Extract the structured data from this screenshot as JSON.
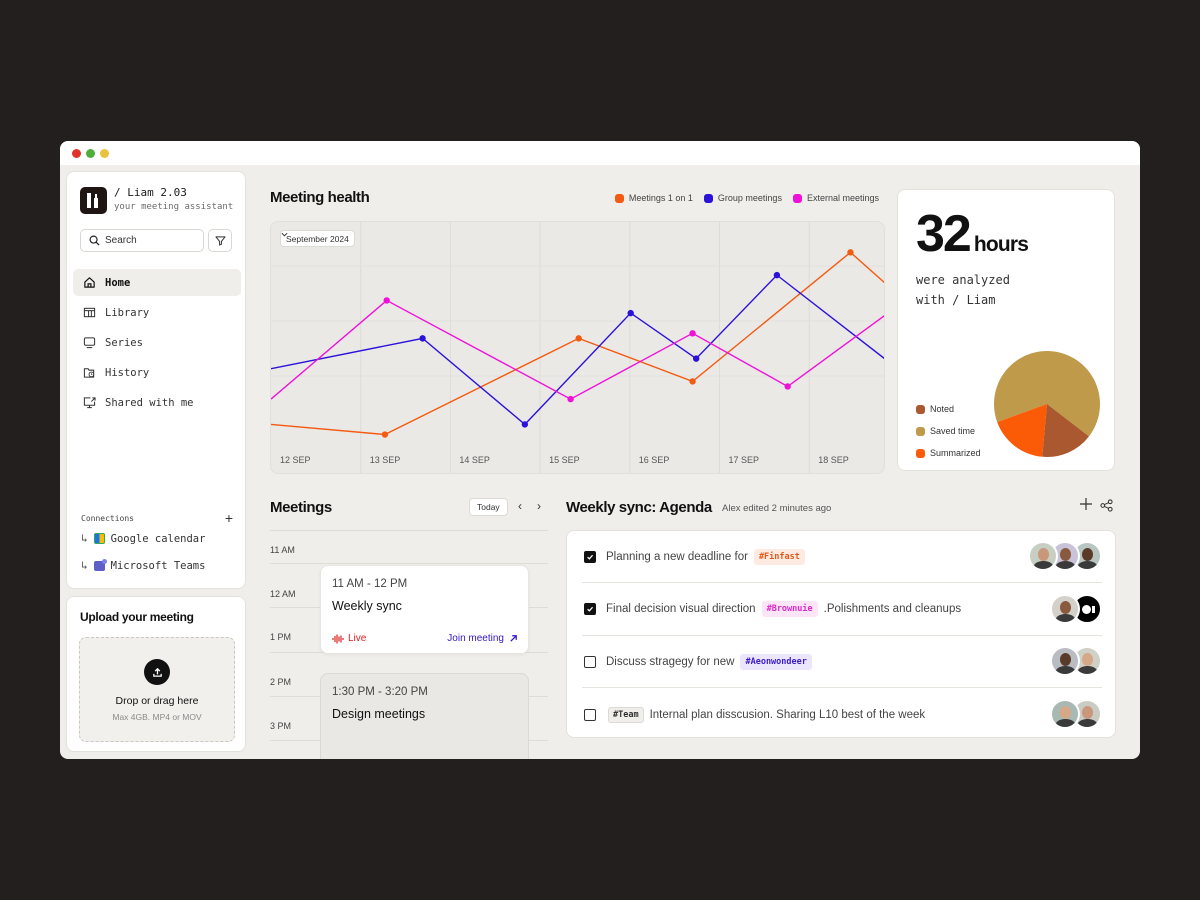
{
  "window": {
    "controls": [
      "#e0312b",
      "#4fae3a",
      "#e9c33d"
    ]
  },
  "sidebar": {
    "brand": {
      "title": "/ Liam 2.03",
      "subtitle": "your meeting assistant"
    },
    "search": {
      "placeholder": "Search"
    },
    "nav": [
      {
        "label": "Home",
        "icon": "home-icon",
        "active": true
      },
      {
        "label": "Library",
        "icon": "library-icon",
        "active": false
      },
      {
        "label": "Series",
        "icon": "monitor-icon",
        "active": false
      },
      {
        "label": "History",
        "icon": "history-folder-icon",
        "active": false
      },
      {
        "label": "Shared with me",
        "icon": "shared-screen-icon",
        "active": false
      }
    ],
    "connections": {
      "label": "Connections",
      "items": [
        {
          "label": "Google calendar",
          "icon": "google-calendar-icon"
        },
        {
          "label": "Microsoft Teams",
          "icon": "microsoft-teams-icon"
        }
      ]
    }
  },
  "upload": {
    "title": "Upload your meeting",
    "drop_title": "Drop or drag here",
    "drop_sub": "Max 4GB. MP4 or MOV"
  },
  "meeting_health": {
    "title": "Meeting health",
    "month": "September 2024"
  },
  "chart_data": {
    "type": "line",
    "title": "Meeting health",
    "x": [
      "12 SEP",
      "13 SEP",
      "14 SEP",
      "15 SEP",
      "16 SEP",
      "17 SEP",
      "18 SEP"
    ],
    "xlabel": "",
    "ylabel": "",
    "ylim": [
      0,
      100
    ],
    "grid": true,
    "legend_position": "top-right",
    "series": [
      {
        "name": "Meetings 1 on 1",
        "color": "#f35a12",
        "points": [
          [
            0.0,
            20
          ],
          [
            1.27,
            16
          ],
          [
            3.43,
            54
          ],
          [
            4.7,
            37
          ],
          [
            6.46,
            88
          ],
          [
            6.84,
            76
          ]
        ]
      },
      {
        "name": "Group meetings",
        "color": "#2a12d9",
        "points": [
          [
            0.0,
            42
          ],
          [
            1.69,
            54
          ],
          [
            2.83,
            20
          ],
          [
            4.01,
            64
          ],
          [
            4.74,
            46
          ],
          [
            5.64,
            79
          ],
          [
            6.84,
            46
          ]
        ]
      },
      {
        "name": "External meetings",
        "color": "#ee12d8",
        "points": [
          [
            0.0,
            30
          ],
          [
            1.29,
            69
          ],
          [
            3.34,
            30
          ],
          [
            4.7,
            56
          ],
          [
            5.76,
            35
          ],
          [
            6.84,
            63
          ]
        ]
      }
    ]
  },
  "hours": {
    "value": "32",
    "unit": "hours",
    "line1": "were analyzed",
    "line2": "with / Liam",
    "pie": [
      {
        "label": "Noted",
        "color": "#a9582f",
        "percent": 16
      },
      {
        "label": "Saved time",
        "color": "#bf9a4b",
        "percent": 66
      },
      {
        "label": "Summarized",
        "color": "#fb5a06",
        "percent": 18
      }
    ]
  },
  "meetings": {
    "title": "Meetings",
    "today_label": "Today",
    "hours": [
      "11 AM",
      "12 AM",
      "1 PM",
      "2 PM",
      "3 PM"
    ],
    "events": [
      {
        "time": "11 AM - 12 PM",
        "title": "Weekly sync",
        "status": "Live",
        "action": "Join meeting"
      },
      {
        "time": "1:30 PM - 3:20 PM",
        "title": "Design meetings"
      }
    ]
  },
  "agenda": {
    "title": "Weekly sync: Agenda",
    "meta": "Alex edited 2 minutes ago",
    "items": [
      {
        "checked": true,
        "before": "Planning a new deadline for",
        "tag": "#Finfast",
        "tag_color": "#e5571a",
        "tag_bg": "#fdebe2",
        "after": "",
        "tag_first": false,
        "avatars": [
          "#c7cfc3",
          "#c9c3d9",
          "#b8c6c2"
        ]
      },
      {
        "checked": true,
        "before": "Final decision visual direction",
        "tag": "#Brownuie",
        "tag_color": "#e02ccc",
        "tag_bg": "#fde5f8",
        "after": ".Polishments  and cleanups",
        "tag_first": false,
        "avatars": [
          "#d4d1cb",
          "#000000"
        ]
      },
      {
        "checked": false,
        "before": "Discuss stragegy for new",
        "tag": "#Aeonwondeer",
        "tag_color": "#3a1fc9",
        "tag_bg": "#ebe6fb",
        "after": "",
        "tag_first": false,
        "avatars": [
          "#b9bcc3",
          "#cfd0c6"
        ]
      },
      {
        "checked": false,
        "before": "",
        "tag": "#Team",
        "tag_color": "#333333",
        "tag_bg": "#efeeeb",
        "after": "Internal plan disscusion. Sharing L10 best of the week",
        "tag_first": true,
        "avatars": [
          "#a8b8b2",
          "#c8ccc2"
        ]
      }
    ]
  }
}
